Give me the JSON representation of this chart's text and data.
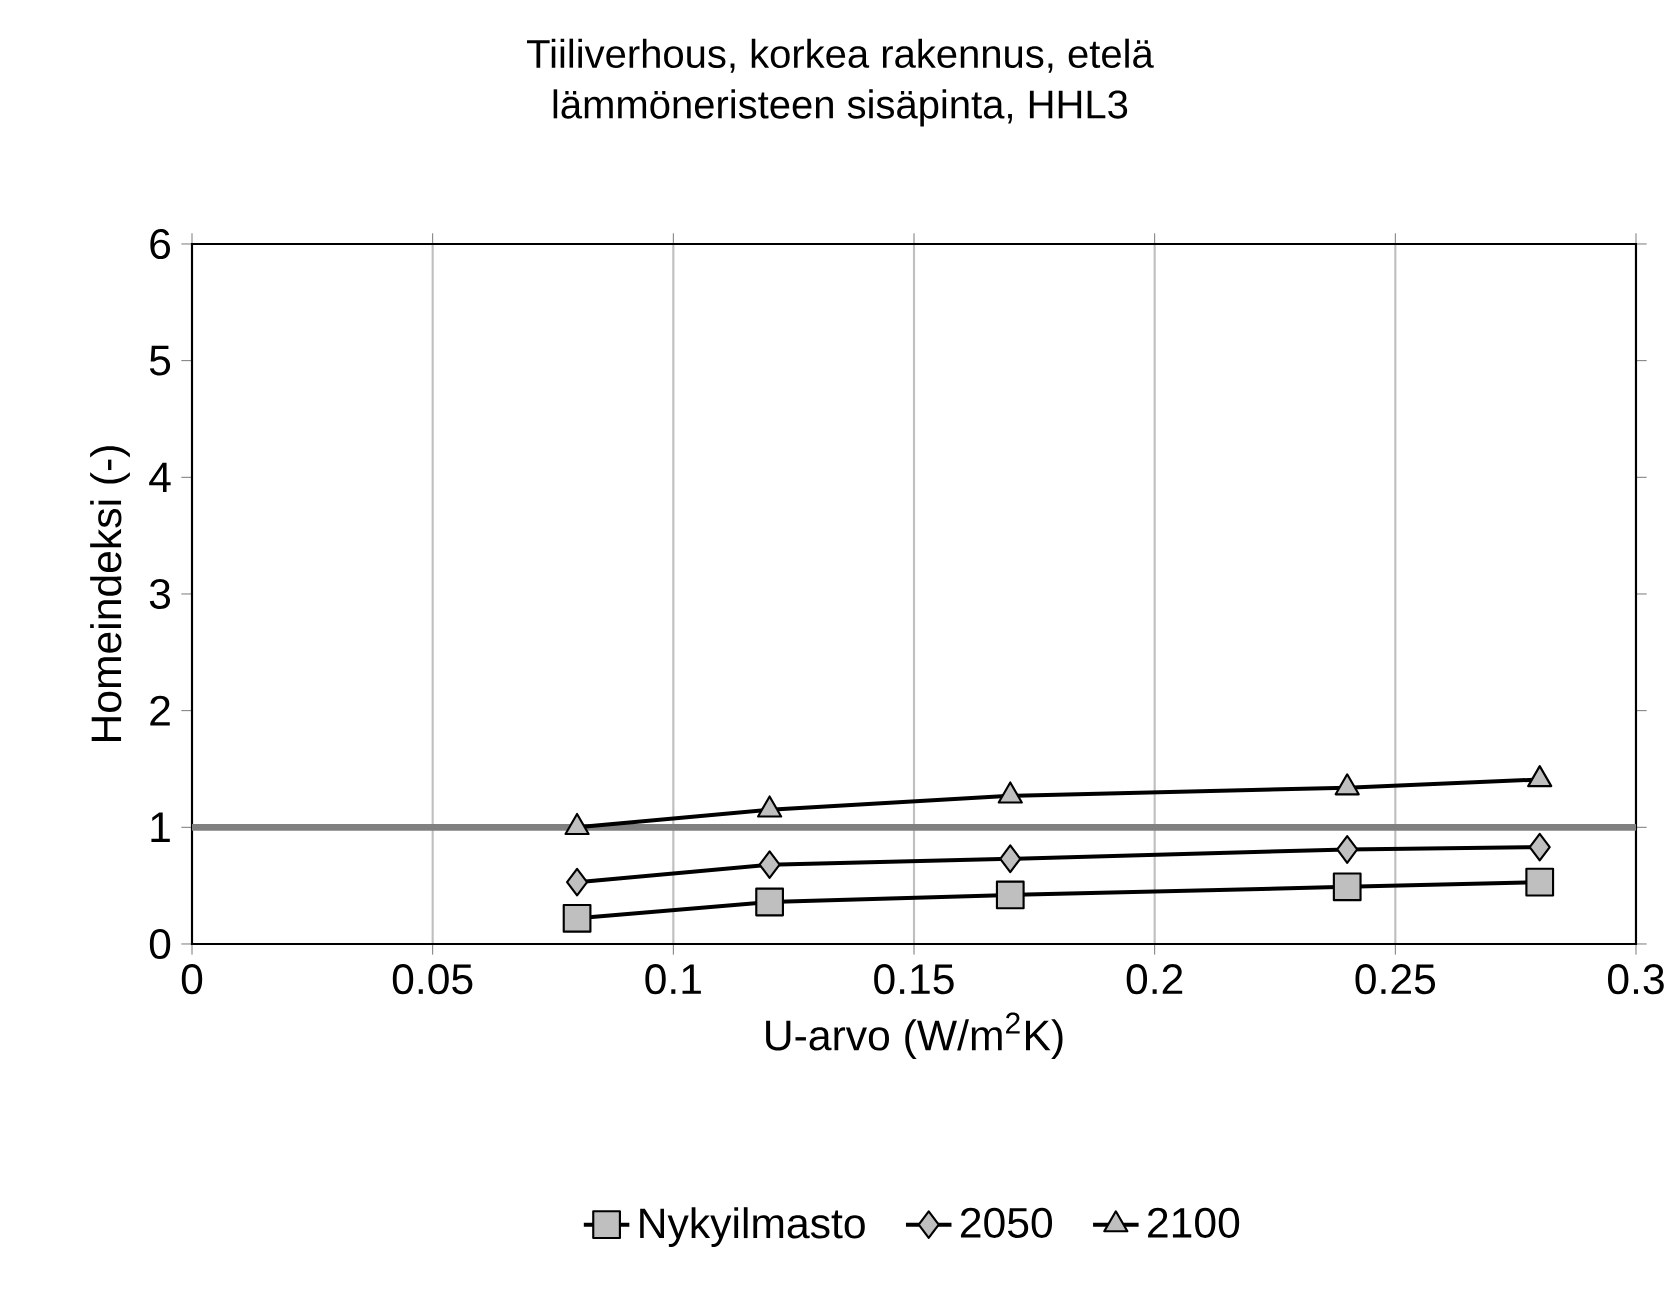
{
  "chart_data": {
    "type": "line",
    "title": "Tiiliverhous, korkea rakennus, etelä\nlämmöneristeen sisäpinta, HHL3",
    "xlabel": "U-arvo (W/m$^{2}$K)",
    "ylabel": "Homeindeksi (-)",
    "x": [
      0.08,
      0.12,
      0.17,
      0.24,
      0.28
    ],
    "series": [
      {
        "name": "Nykyilmasto",
        "color": "#000000",
        "marker": "square",
        "values": [
          0.22,
          0.36,
          0.42,
          0.49,
          0.53
        ]
      },
      {
        "name": "2050",
        "color": "#000000",
        "marker": "diamond",
        "values": [
          0.53,
          0.68,
          0.73,
          0.81,
          0.83
        ]
      },
      {
        "name": "2100",
        "color": "#000000",
        "marker": "triangle",
        "values": [
          1.0,
          1.15,
          1.27,
          1.34,
          1.41
        ]
      }
    ],
    "xlim": [
      0,
      0.3
    ],
    "xticks": [
      0,
      0.05,
      0.1,
      0.15,
      0.2,
      0.25,
      0.3
    ],
    "ylim": [
      0,
      6
    ],
    "yticks": [
      0,
      1,
      2,
      3,
      4,
      5,
      6
    ],
    "ref_lines": [
      {
        "axis": "y",
        "value": 1,
        "color": "#808080"
      }
    ],
    "grid": "x",
    "legend": "bottom",
    "line_style": "solid"
  }
}
